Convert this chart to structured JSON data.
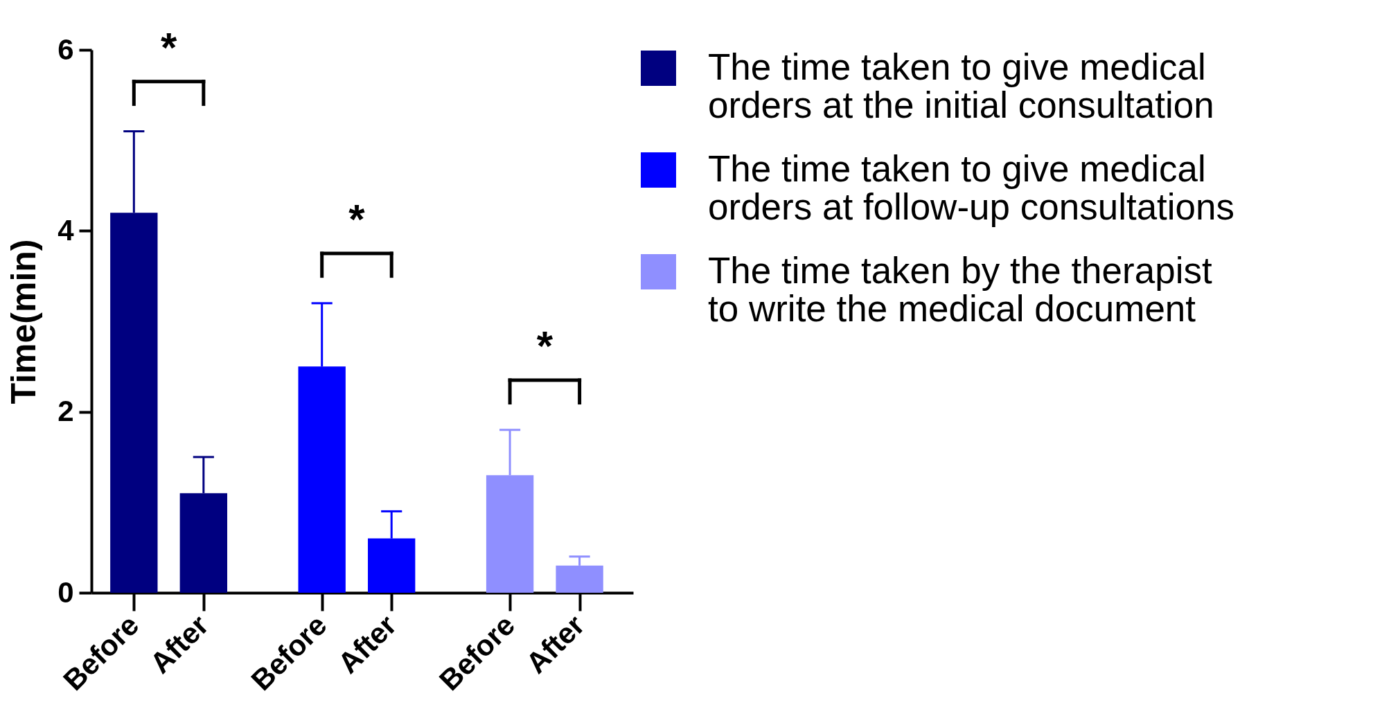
{
  "chart_data": {
    "type": "bar",
    "ylabel": "Time(min)",
    "categories": [
      "Before",
      "After",
      "Before",
      "After",
      "Before",
      "After"
    ],
    "series": [
      {
        "name": "The time taken to give medical orders at the initial consultation",
        "color": "#000080",
        "values": [
          4.2,
          1.1,
          null,
          null,
          null,
          null
        ],
        "errors": [
          [
            4.2,
            5.1
          ],
          [
            1.1,
            1.5
          ],
          null,
          null,
          null,
          null
        ]
      },
      {
        "name": "The time taken to give medical orders at follow-up consultations",
        "color": "#0000ff",
        "values": [
          null,
          null,
          2.5,
          0.6,
          null,
          null
        ],
        "errors": [
          null,
          null,
          [
            2.5,
            3.2
          ],
          [
            0.6,
            0.9
          ],
          null,
          null
        ]
      },
      {
        "name": "The time taken by the therapist to write the medical document",
        "color": "#8f8fff",
        "values": [
          null,
          null,
          null,
          null,
          1.3,
          0.3
        ],
        "errors": [
          null,
          null,
          null,
          null,
          [
            1.3,
            1.8
          ],
          [
            0.3,
            0.4
          ]
        ]
      }
    ],
    "ylim": [
      0,
      6
    ],
    "yticks": [
      0,
      2,
      4,
      6
    ],
    "legend": "top right",
    "annotations": [
      "*",
      "*",
      "*"
    ]
  }
}
